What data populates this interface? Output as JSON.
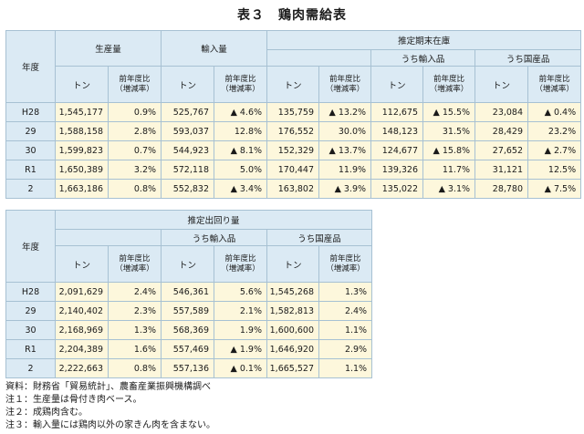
{
  "title": "表３　鶏肉需給表",
  "table1": {
    "headers": {
      "year": "年度",
      "production": "生産量",
      "imports": "輸入量",
      "stock": "推定期末在庫",
      "stock_imported": "うち輸入品",
      "stock_domestic": "うち国産品",
      "ton": "トン",
      "ratio": "前年度比\n（増減率）"
    },
    "rows": [
      {
        "year": "H28",
        "cells": [
          "1,545,177",
          "0.9%",
          "525,767",
          "▲ 4.6%",
          "135,759",
          "▲ 13.2%",
          "112,675",
          "▲ 15.5%",
          "23,084",
          "▲ 0.4%"
        ]
      },
      {
        "year": "29",
        "cells": [
          "1,588,158",
          "2.8%",
          "593,037",
          "12.8%",
          "176,552",
          "30.0%",
          "148,123",
          "31.5%",
          "28,429",
          "23.2%"
        ]
      },
      {
        "year": "30",
        "cells": [
          "1,599,823",
          "0.7%",
          "544,923",
          "▲ 8.1%",
          "152,329",
          "▲ 13.7%",
          "124,677",
          "▲ 15.8%",
          "27,652",
          "▲ 2.7%"
        ]
      },
      {
        "year": "R1",
        "cells": [
          "1,650,389",
          "3.2%",
          "572,118",
          "5.0%",
          "170,447",
          "11.9%",
          "139,326",
          "11.7%",
          "31,121",
          "12.5%"
        ]
      },
      {
        "year": "2",
        "cells": [
          "1,663,186",
          "0.8%",
          "552,832",
          "▲ 3.4%",
          "163,802",
          "▲ 3.9%",
          "135,022",
          "▲ 3.1%",
          "28,780",
          "▲ 7.5%"
        ]
      }
    ]
  },
  "table2": {
    "headers": {
      "year": "年度",
      "shipments": "推定出回り量",
      "ship_imported": "うち輸入品",
      "ship_domestic": "うち国産品",
      "ton": "トン",
      "ratio": "前年度比\n（増減率）"
    },
    "rows": [
      {
        "year": "H28",
        "cells": [
          "2,091,629",
          "2.4%",
          "546,361",
          "5.6%",
          "1,545,268",
          "1.3%"
        ]
      },
      {
        "year": "29",
        "cells": [
          "2,140,402",
          "2.3%",
          "557,589",
          "2.1%",
          "1,582,813",
          "2.4%"
        ]
      },
      {
        "year": "30",
        "cells": [
          "2,168,969",
          "1.3%",
          "568,369",
          "1.9%",
          "1,600,600",
          "1.1%"
        ]
      },
      {
        "year": "R1",
        "cells": [
          "2,204,389",
          "1.6%",
          "557,469",
          "▲ 1.9%",
          "1,646,920",
          "2.9%"
        ]
      },
      {
        "year": "2",
        "cells": [
          "2,222,663",
          "0.8%",
          "557,136",
          "▲ 0.1%",
          "1,665,527",
          "1.1%"
        ]
      }
    ]
  },
  "notes": [
    "資料：財務省「貿易統計」、農畜産業振興機構調べ",
    "注１：生産量は骨付き肉ベース。",
    "注２：成鶏肉含む。",
    "注３：輸入量には鶏肉以外の家きん肉を含まない。"
  ]
}
